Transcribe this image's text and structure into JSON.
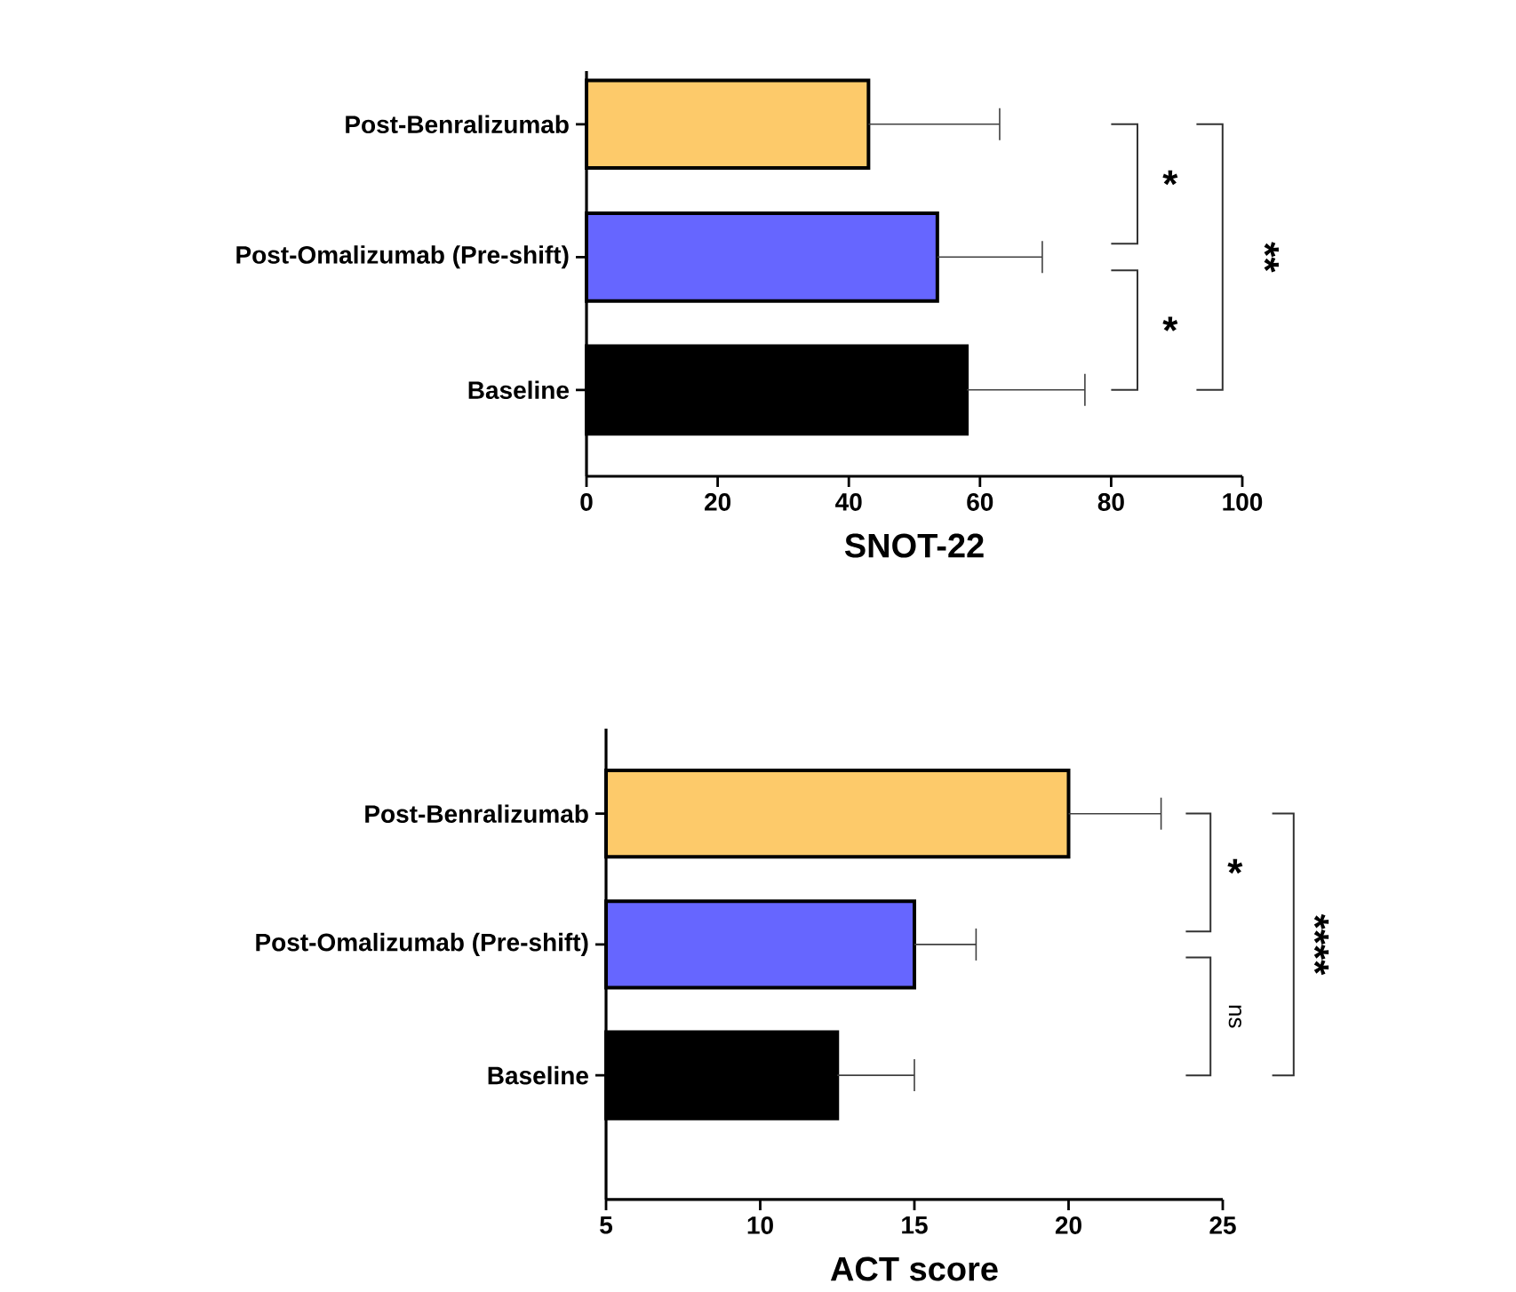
{
  "chart_data": [
    {
      "type": "bar",
      "orientation": "horizontal",
      "categories": [
        "Post-Benralizumab",
        "Post-Omalizumab (Pre-shift)",
        "Baseline"
      ],
      "values": [
        43,
        53.5,
        58
      ],
      "colors": [
        "#fdca6a",
        "#6666ff",
        "#000000"
      ],
      "errors": [
        [
          43,
          63
        ],
        [
          53.5,
          69.5
        ],
        [
          58,
          76
        ]
      ],
      "xlabel": "SNOT-22",
      "xlim": [
        0,
        100
      ],
      "xticks": [
        0,
        20,
        40,
        60,
        80,
        100
      ],
      "annotations": [
        "*",
        "*",
        "**"
      ]
    },
    {
      "type": "bar",
      "orientation": "horizontal",
      "categories": [
        "Post-Benralizumab",
        "Post-Omalizumab (Pre-shift)",
        "Baseline"
      ],
      "values": [
        20,
        15,
        12.5
      ],
      "colors": [
        "#fdca6a",
        "#6666ff",
        "#000000"
      ],
      "errors": [
        [
          20,
          23
        ],
        [
          15,
          17
        ],
        [
          12.5,
          15
        ]
      ],
      "xlabel": "ACT score",
      "xlim": [
        5,
        25
      ],
      "xticks": [
        5,
        10,
        15,
        20,
        25
      ],
      "annotations": [
        "*",
        "ns",
        "****"
      ]
    }
  ]
}
